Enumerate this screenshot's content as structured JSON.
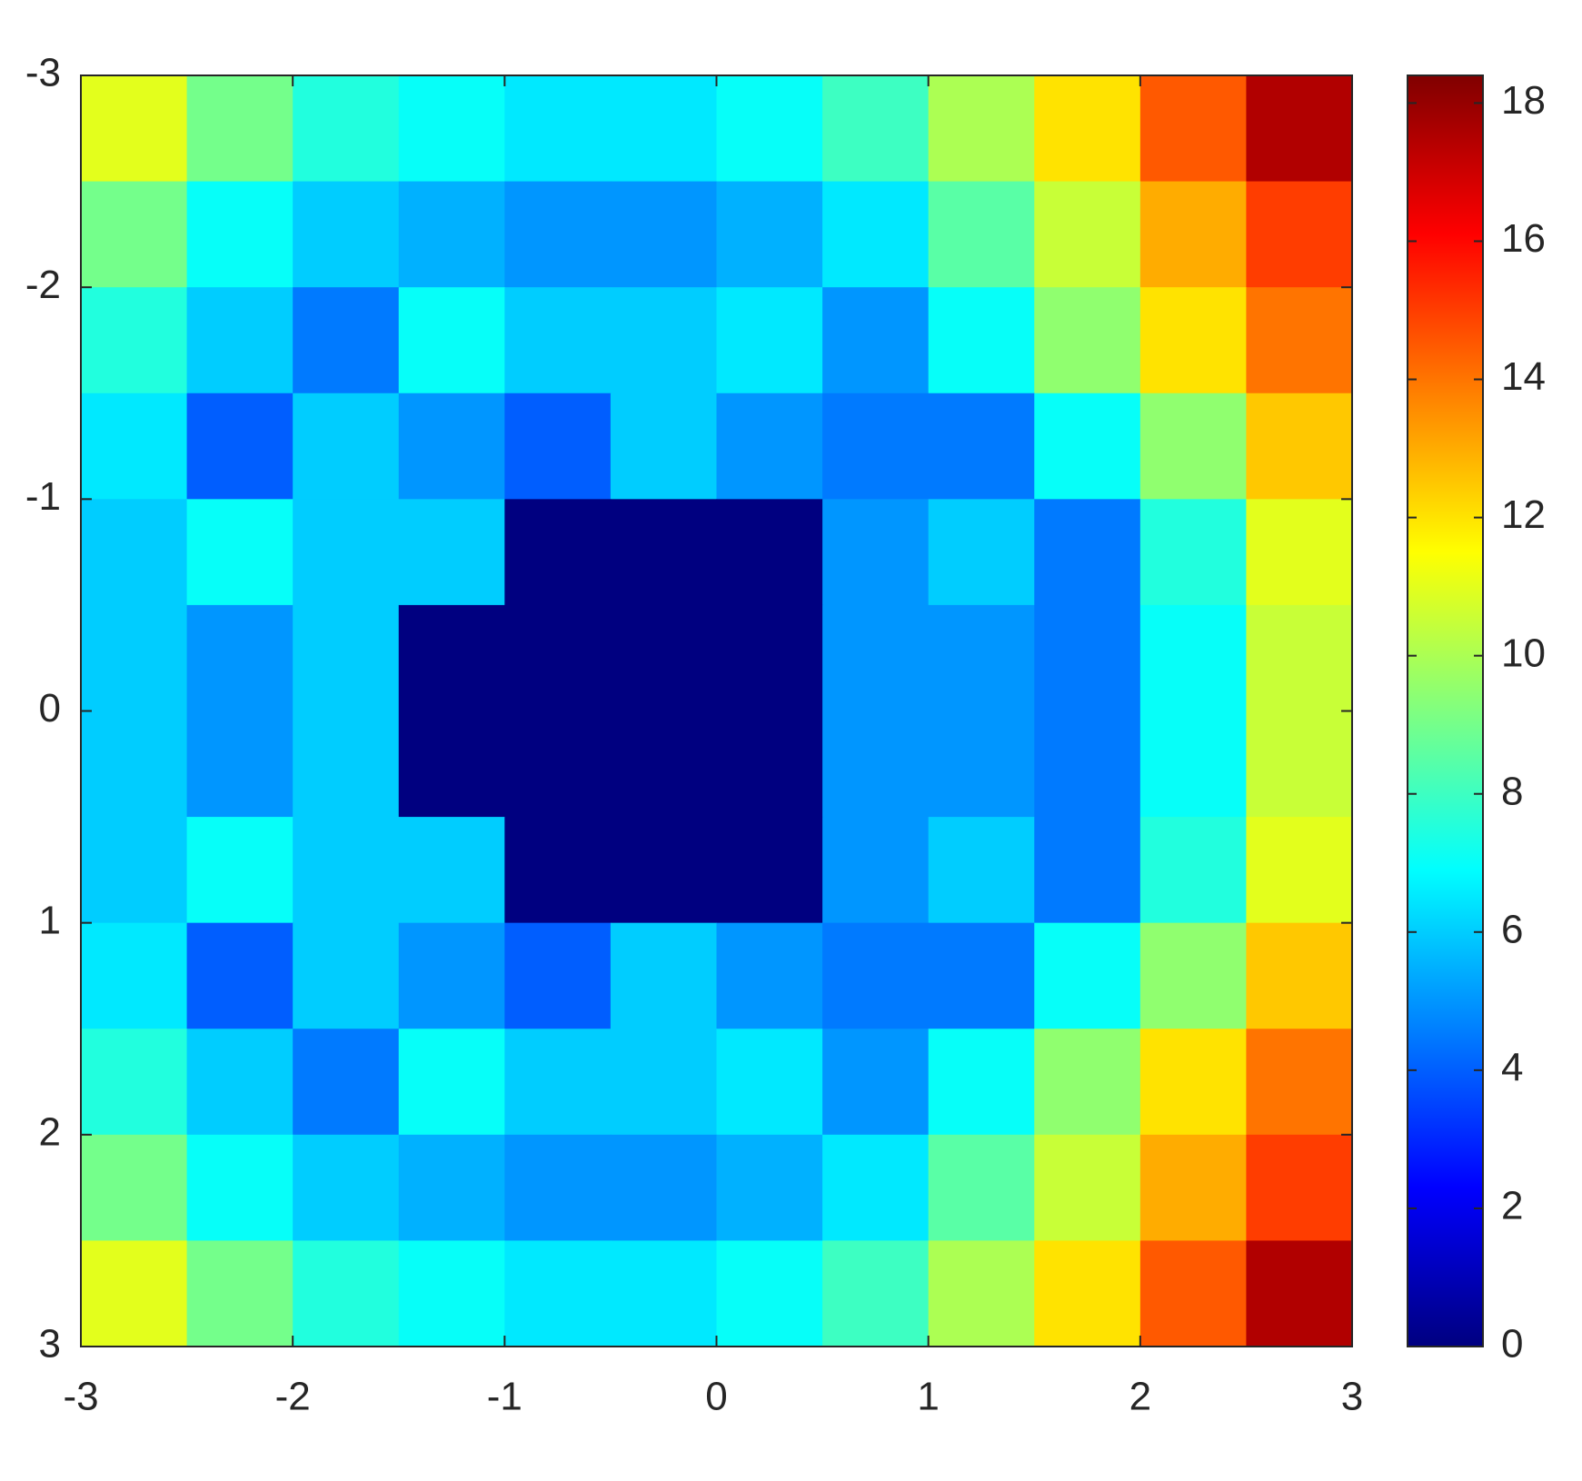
{
  "chart_data": {
    "type": "heatmap",
    "colormap": "jet",
    "clim": [
      0,
      18.4
    ],
    "cbar_ticks": [
      0,
      2,
      4,
      6,
      8,
      10,
      12,
      14,
      16,
      18
    ],
    "xlim": [
      -3,
      3
    ],
    "xticks": [
      -3,
      -2,
      -1,
      0,
      1,
      2,
      3
    ],
    "ylim": [
      -3,
      3
    ],
    "yticks": [
      -3,
      -2,
      -1,
      0,
      1,
      2,
      3
    ],
    "y_reverse": true,
    "x": [
      -2.75,
      -2.25,
      -1.75,
      -1.25,
      -0.75,
      -0.25,
      0.25,
      0.75,
      1.25,
      1.75,
      2.25,
      2.75
    ],
    "y": [
      -2.75,
      -2.25,
      -1.75,
      -1.25,
      -0.75,
      -0.25,
      0.25,
      0.75,
      1.25,
      1.75,
      2.25,
      2.75
    ],
    "z": [
      [
        11,
        9,
        7.5,
        7,
        6.5,
        6.5,
        7,
        8,
        10,
        12,
        14.5,
        17.5
      ],
      [
        9,
        7,
        6,
        5.5,
        5,
        5,
        5.5,
        6.5,
        8.5,
        10.5,
        13,
        15
      ],
      [
        7.5,
        6,
        4.5,
        7,
        6,
        6,
        6.5,
        5,
        7,
        9.5,
        12,
        14
      ],
      [
        6.5,
        4,
        6,
        5,
        4,
        6,
        5,
        4.5,
        4.5,
        7,
        9.5,
        12.5
      ],
      [
        6,
        7,
        6,
        6,
        0,
        0,
        0,
        5,
        6,
        4.5,
        7.5,
        11
      ],
      [
        6,
        5,
        6,
        0,
        0,
        0,
        0,
        5,
        5,
        4.5,
        7,
        10.5
      ],
      [
        6,
        5,
        6,
        0,
        0,
        0,
        0,
        5,
        5,
        4.5,
        7,
        10.5
      ],
      [
        6,
        7,
        6,
        6,
        0,
        0,
        0,
        5,
        6,
        4.5,
        7.5,
        11
      ],
      [
        6.5,
        4,
        6,
        5,
        4,
        6,
        5,
        4.5,
        4.5,
        7,
        9.5,
        12.5
      ],
      [
        7.5,
        6,
        4.5,
        7,
        6,
        6,
        6.5,
        5,
        7,
        9.5,
        12,
        14
      ],
      [
        9,
        7,
        6,
        5.5,
        5,
        5,
        5.5,
        6.5,
        8.5,
        10.5,
        13,
        15
      ],
      [
        11,
        9,
        7.5,
        7,
        6.5,
        6.5,
        7,
        8,
        10,
        12,
        14.5,
        17.5
      ]
    ]
  }
}
